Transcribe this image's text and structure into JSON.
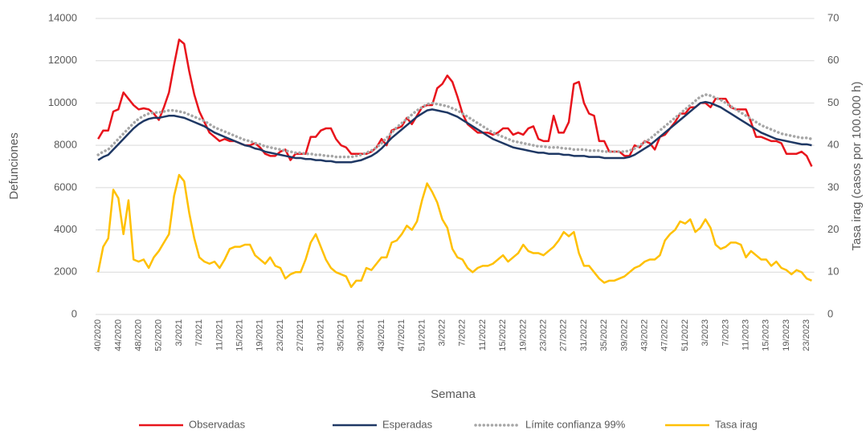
{
  "chart_data": {
    "type": "line",
    "x_label": "Semana",
    "y_label": "Defunciones",
    "y2_label": "Tasa irag (casos por 100.000 h)",
    "legend": "bottom",
    "grid": true,
    "ylim": [
      0,
      14000
    ],
    "yticks": [
      0,
      2000,
      4000,
      6000,
      8000,
      10000,
      12000,
      14000
    ],
    "y2lim": [
      0,
      70
    ],
    "y2ticks": [
      0,
      10,
      20,
      30,
      40,
      50,
      60,
      70
    ],
    "categories": [
      "40/2020",
      null,
      null,
      null,
      "44/2020",
      null,
      null,
      null,
      "48/2020",
      null,
      null,
      null,
      "52/2020",
      null,
      null,
      null,
      "3/2021",
      null,
      null,
      null,
      "7/2021",
      null,
      null,
      null,
      "11/2021",
      null,
      null,
      null,
      "15/2021",
      null,
      null,
      null,
      "19/2021",
      null,
      null,
      null,
      "23/2021",
      null,
      null,
      null,
      "27/2021",
      null,
      null,
      null,
      "31/2021",
      null,
      null,
      null,
      "35/2021",
      null,
      null,
      null,
      "39/2021",
      null,
      null,
      null,
      "43/2021",
      null,
      null,
      null,
      "47/2021",
      null,
      null,
      null,
      "51/2021",
      null,
      null,
      null,
      "3/2022",
      null,
      null,
      null,
      "7/2022",
      null,
      null,
      null,
      "11/2022",
      null,
      null,
      null,
      "15/2022",
      null,
      null,
      null,
      "19/2022",
      null,
      null,
      null,
      "23/2022",
      null,
      null,
      null,
      "27/2022",
      null,
      null,
      null,
      "31/2022",
      null,
      null,
      null,
      "35/2022",
      null,
      null,
      null,
      "39/2022",
      null,
      null,
      null,
      "43/2022",
      null,
      null,
      null,
      "47/2022",
      null,
      null,
      null,
      "51/2022",
      null,
      null,
      null,
      "3/2023",
      null,
      null,
      null,
      "7/2023",
      null,
      null,
      null,
      "11/2023",
      null,
      null,
      null,
      "15/2023",
      null,
      null,
      null,
      "19/2023",
      null,
      null,
      null,
      "23/2023",
      null
    ],
    "series": [
      {
        "name": "Observadas",
        "color": "#e8141c",
        "line_style": "solid",
        "values": [
          8300,
          8700,
          8700,
          9600,
          9700,
          10500,
          10200,
          9900,
          9700,
          9750,
          9700,
          9500,
          9200,
          9800,
          10500,
          11800,
          13000,
          12800,
          11500,
          10400,
          9600,
          9100,
          8600,
          8400,
          8200,
          8300,
          8200,
          8200,
          8100,
          8000,
          8000,
          8100,
          7900,
          7600,
          7500,
          7500,
          7700,
          7800,
          7300,
          7600,
          7600,
          7600,
          8400,
          8400,
          8700,
          8800,
          8800,
          8300,
          8000,
          7900,
          7600,
          7600,
          7600,
          7600,
          7700,
          7900,
          8300,
          8000,
          8700,
          8800,
          8900,
          9300,
          9000,
          9400,
          9800,
          9900,
          9900,
          10700,
          10900,
          11300,
          11000,
          10300,
          9500,
          9000,
          8800,
          8600,
          8600,
          8600,
          8500,
          8600,
          8800,
          8800,
          8500,
          8600,
          8500,
          8800,
          8900,
          8300,
          8200,
          8200,
          9400,
          8600,
          8600,
          9100,
          10900,
          11000,
          10000,
          9500,
          9400,
          8200,
          8200,
          7700,
          7700,
          7700,
          7500,
          7500,
          8000,
          7900,
          8200,
          8100,
          7800,
          8400,
          8500,
          8800,
          9100,
          9500,
          9500,
          9800,
          9800,
          10000,
          10000,
          9800,
          10200,
          10200,
          10200,
          9800,
          9700,
          9700,
          9700,
          9100,
          8400,
          8400,
          8300,
          8200,
          8200,
          8100,
          7600,
          7600,
          7600,
          7700,
          7500,
          7000
        ]
      },
      {
        "name": "Esperadas",
        "color": "#1f3864",
        "line_style": "solid",
        "values": [
          7300,
          7450,
          7550,
          7800,
          8050,
          8300,
          8550,
          8800,
          9000,
          9150,
          9250,
          9300,
          9300,
          9350,
          9400,
          9400,
          9350,
          9300,
          9200,
          9100,
          9000,
          8900,
          8750,
          8600,
          8500,
          8400,
          8300,
          8200,
          8100,
          8000,
          7950,
          7850,
          7800,
          7700,
          7650,
          7600,
          7550,
          7500,
          7450,
          7400,
          7400,
          7350,
          7350,
          7300,
          7300,
          7250,
          7250,
          7200,
          7200,
          7200,
          7200,
          7250,
          7300,
          7400,
          7500,
          7650,
          7850,
          8100,
          8350,
          8550,
          8750,
          8950,
          9150,
          9350,
          9500,
          9650,
          9700,
          9650,
          9600,
          9550,
          9450,
          9350,
          9200,
          9050,
          8900,
          8750,
          8600,
          8450,
          8300,
          8200,
          8100,
          8000,
          7900,
          7850,
          7800,
          7750,
          7700,
          7650,
          7650,
          7600,
          7600,
          7600,
          7550,
          7550,
          7500,
          7500,
          7500,
          7450,
          7450,
          7450,
          7400,
          7400,
          7400,
          7400,
          7400,
          7450,
          7550,
          7700,
          7850,
          8000,
          8200,
          8400,
          8600,
          8800,
          9000,
          9200,
          9400,
          9600,
          9800,
          10000,
          10050,
          10000,
          9900,
          9800,
          9650,
          9500,
          9350,
          9200,
          9050,
          8900,
          8750,
          8600,
          8500,
          8400,
          8300,
          8250,
          8200,
          8150,
          8100,
          8050,
          8050,
          8000
        ]
      },
      {
        "name": "Límite confianza 99%",
        "color": "#a6a6a6",
        "line_style": "dotted",
        "values": [
          7550,
          7700,
          7800,
          8050,
          8300,
          8550,
          8800,
          9050,
          9250,
          9400,
          9500,
          9550,
          9550,
          9600,
          9650,
          9650,
          9600,
          9550,
          9450,
          9350,
          9250,
          9150,
          9000,
          8850,
          8750,
          8650,
          8550,
          8450,
          8350,
          8250,
          8200,
          8100,
          8050,
          7950,
          7900,
          7850,
          7800,
          7750,
          7700,
          7650,
          7650,
          7600,
          7600,
          7550,
          7550,
          7500,
          7500,
          7450,
          7450,
          7450,
          7450,
          7500,
          7550,
          7650,
          7750,
          7900,
          8100,
          8350,
          8600,
          8850,
          9050,
          9250,
          9450,
          9650,
          9800,
          9950,
          10000,
          9950,
          9900,
          9850,
          9750,
          9650,
          9500,
          9350,
          9200,
          9050,
          8900,
          8750,
          8600,
          8500,
          8400,
          8300,
          8200,
          8150,
          8100,
          8050,
          8000,
          7950,
          7950,
          7900,
          7900,
          7900,
          7850,
          7850,
          7800,
          7800,
          7800,
          7750,
          7750,
          7750,
          7700,
          7700,
          7700,
          7700,
          7700,
          7750,
          7850,
          8000,
          8150,
          8300,
          8500,
          8700,
          8900,
          9100,
          9300,
          9500,
          9700,
          9900,
          10100,
          10300,
          10400,
          10350,
          10250,
          10150,
          10000,
          9850,
          9700,
          9550,
          9400,
          9250,
          9100,
          8950,
          8850,
          8750,
          8650,
          8550,
          8500,
          8450,
          8400,
          8350,
          8350,
          8300
        ]
      },
      {
        "name": "Tasa irag",
        "color": "#ffc000",
        "line_style": "solid",
        "axis": "y2",
        "values": [
          10,
          16,
          18,
          29.5,
          27.5,
          19,
          27,
          13,
          12.5,
          13,
          11,
          13.5,
          15,
          17,
          19,
          28,
          33,
          31.5,
          24,
          18,
          13.5,
          12.5,
          12,
          12.5,
          11,
          13,
          15.5,
          16,
          16,
          16.5,
          16.5,
          14,
          13,
          12,
          13.5,
          11.5,
          11,
          8.5,
          9.5,
          10,
          10,
          13,
          17,
          19,
          16,
          13,
          11,
          10,
          9.5,
          9,
          6.5,
          8,
          8,
          11,
          10.5,
          12,
          13.5,
          13.5,
          17,
          17.5,
          19,
          21,
          20,
          22,
          27,
          31,
          29,
          26.5,
          22.5,
          20.5,
          15.5,
          13.5,
          13,
          11,
          10,
          11,
          11.5,
          11.5,
          12,
          13,
          14,
          12.5,
          13.5,
          14.5,
          16.5,
          15,
          14.5,
          14.5,
          14,
          15,
          16,
          17.5,
          19.5,
          18.5,
          19.5,
          14.5,
          11.5,
          11.5,
          10,
          8.5,
          7.5,
          8,
          8,
          8.5,
          9,
          10,
          11,
          11.5,
          12.5,
          13,
          13,
          14,
          17.5,
          19,
          20,
          22,
          21.5,
          22.5,
          19.5,
          20.5,
          22.5,
          20.5,
          16.5,
          15.5,
          16,
          17,
          17,
          16.5,
          13.5,
          15,
          14,
          13,
          13,
          11.5,
          12.5,
          11,
          10.5,
          9.5,
          10.5,
          10,
          8.5,
          8
        ]
      }
    ]
  }
}
